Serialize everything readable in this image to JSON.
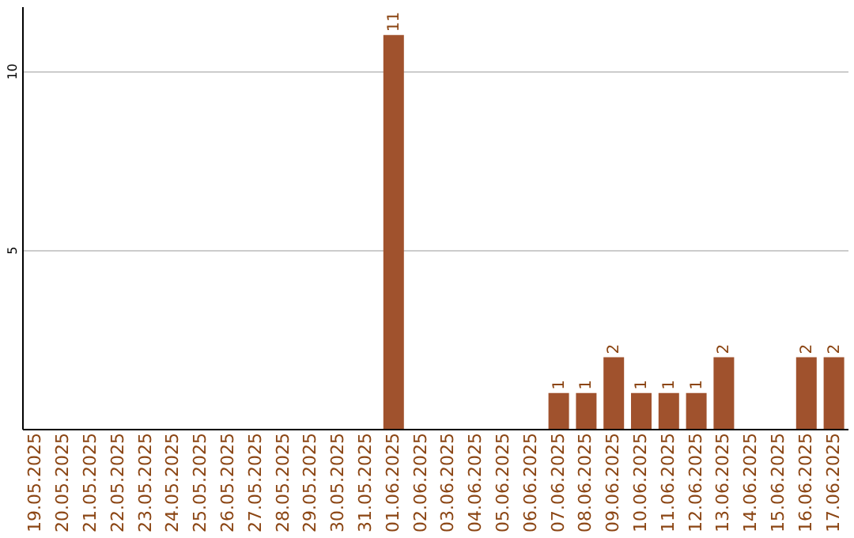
{
  "chart_data": {
    "type": "bar",
    "categories": [
      "19.05.2025",
      "20.05.2025",
      "21.05.2025",
      "22.05.2025",
      "23.05.2025",
      "24.05.2025",
      "25.05.2025",
      "26.05.2025",
      "27.05.2025",
      "28.05.2025",
      "29.05.2025",
      "30.05.2025",
      "31.05.2025",
      "01.06.2025",
      "02.06.2025",
      "03.06.2025",
      "04.06.2025",
      "05.06.2025",
      "06.06.2025",
      "07.06.2025",
      "08.06.2025",
      "09.06.2025",
      "10.06.2025",
      "11.06.2025",
      "12.06.2025",
      "13.06.2025",
      "14.06.2025",
      "15.06.2025",
      "16.06.2025",
      "17.06.2025"
    ],
    "values": [
      0,
      0,
      0,
      0,
      0,
      0,
      0,
      0,
      0,
      0,
      0,
      0,
      0,
      11,
      0,
      0,
      0,
      0,
      0,
      1,
      1,
      2,
      1,
      1,
      1,
      2,
      0,
      0,
      2,
      2
    ],
    "value_labels": [
      null,
      null,
      null,
      null,
      null,
      null,
      null,
      null,
      null,
      null,
      null,
      null,
      null,
      "11",
      null,
      null,
      null,
      null,
      null,
      "1",
      "1",
      "2",
      "1",
      "1",
      "1",
      "2",
      null,
      null,
      "2",
      "2"
    ],
    "color": "#a0522d",
    "ylim": [
      0,
      11.8
    ],
    "yticks": [
      5,
      10
    ],
    "grid": "y"
  }
}
